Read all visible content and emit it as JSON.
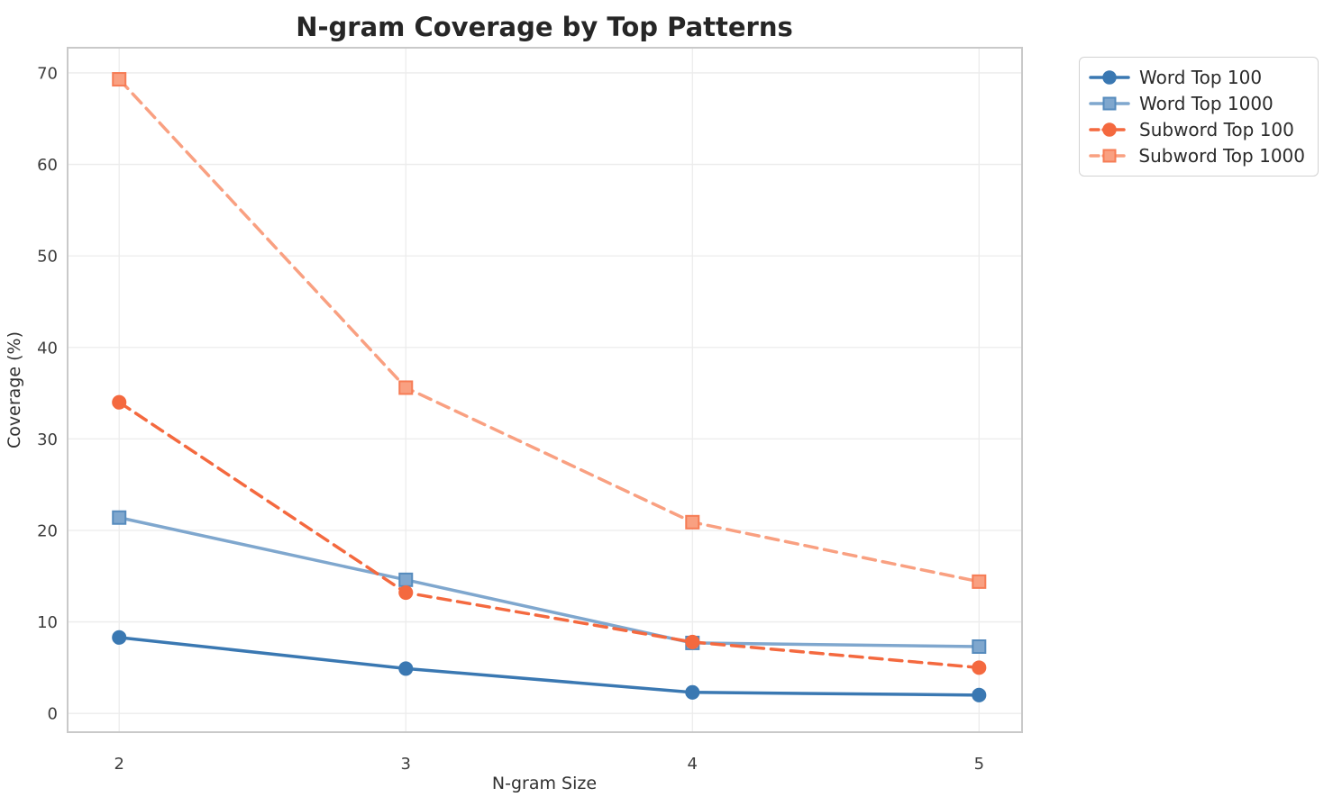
{
  "title": "N-gram Coverage by Top Patterns",
  "chart_data": {
    "type": "line",
    "title": "N-gram Coverage by Top Patterns",
    "xlabel": "N-gram Size",
    "ylabel": "Coverage (%)",
    "x": [
      2,
      3,
      4,
      5
    ],
    "xticks": [
      "2",
      "3",
      "4",
      "5"
    ],
    "yticks": [
      "0",
      "10",
      "20",
      "30",
      "40",
      "50",
      "60",
      "70"
    ],
    "ytick_values": [
      0,
      10,
      20,
      30,
      40,
      50,
      60,
      70
    ],
    "xlim": [
      1.82,
      5.15
    ],
    "ylim": [
      -2.05,
      72.75
    ],
    "grid": true,
    "legend_position": "outside-top-right",
    "series": [
      {
        "name": "Word Top 100",
        "values": [
          8.3,
          4.9,
          2.3,
          2.0
        ],
        "color": "#3a78b2",
        "edge_color": "#3a78b2",
        "line_style": "solid",
        "marker": "circle"
      },
      {
        "name": "Word Top 1000",
        "values": [
          21.4,
          14.6,
          7.7,
          7.3
        ],
        "color": "#7fa7ce",
        "edge_color": "#568bbd",
        "line_style": "solid",
        "marker": "square"
      },
      {
        "name": "Subword Top 100",
        "values": [
          34.0,
          13.2,
          7.8,
          5.0
        ],
        "color": "#f4693f",
        "edge_color": "#f4693f",
        "line_style": "dashed",
        "marker": "circle"
      },
      {
        "name": "Subword Top 1000",
        "values": [
          69.3,
          35.6,
          20.9,
          14.4
        ],
        "color": "#f9a081",
        "edge_color": "#f67c55",
        "line_style": "dashed",
        "marker": "square"
      }
    ]
  }
}
